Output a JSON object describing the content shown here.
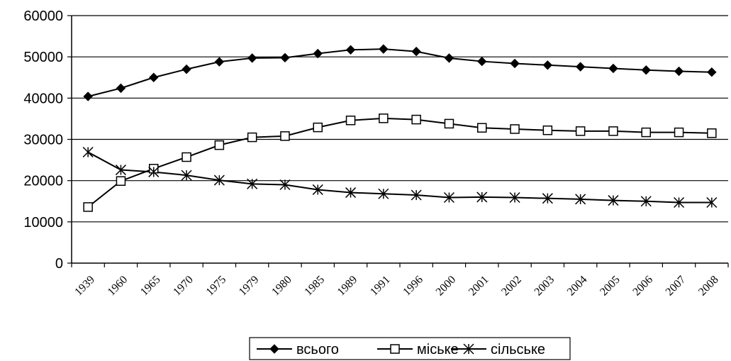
{
  "chart_data": {
    "type": "line",
    "x": [
      "1939",
      "1960",
      "1965",
      "1970",
      "1975",
      "1979",
      "1980",
      "1985",
      "1989",
      "1991",
      "1996",
      "2000",
      "2001",
      "2002",
      "2003",
      "2004",
      "2005",
      "2006",
      "2007",
      "2008"
    ],
    "ylim": [
      0,
      60000
    ],
    "yticks": [
      "0",
      "10000",
      "20000",
      "30000",
      "40000",
      "50000",
      "60000"
    ],
    "grid": "horizontal",
    "legend_position": "bottom",
    "series": [
      {
        "name": "всього",
        "marker": "diamond",
        "color": "#000000",
        "values": [
          40400,
          42400,
          45000,
          47000,
          48800,
          49700,
          49800,
          50800,
          51700,
          51900,
          51300,
          49700,
          48900,
          48400,
          48000,
          47600,
          47200,
          46800,
          46500,
          46300
        ]
      },
      {
        "name": "міське",
        "marker": "square",
        "color": "#000000",
        "values": [
          13600,
          19900,
          22900,
          25700,
          28600,
          30500,
          30800,
          32900,
          34600,
          35100,
          34800,
          33800,
          32800,
          32500,
          32200,
          32000,
          32000,
          31700,
          31700,
          31500
        ]
      },
      {
        "name": "сільське",
        "marker": "asterisk",
        "color": "#000000",
        "values": [
          26900,
          22600,
          22100,
          21300,
          20100,
          19200,
          19000,
          17800,
          17100,
          16800,
          16500,
          15900,
          16000,
          15900,
          15700,
          15500,
          15200,
          15000,
          14700,
          14700
        ]
      }
    ]
  }
}
